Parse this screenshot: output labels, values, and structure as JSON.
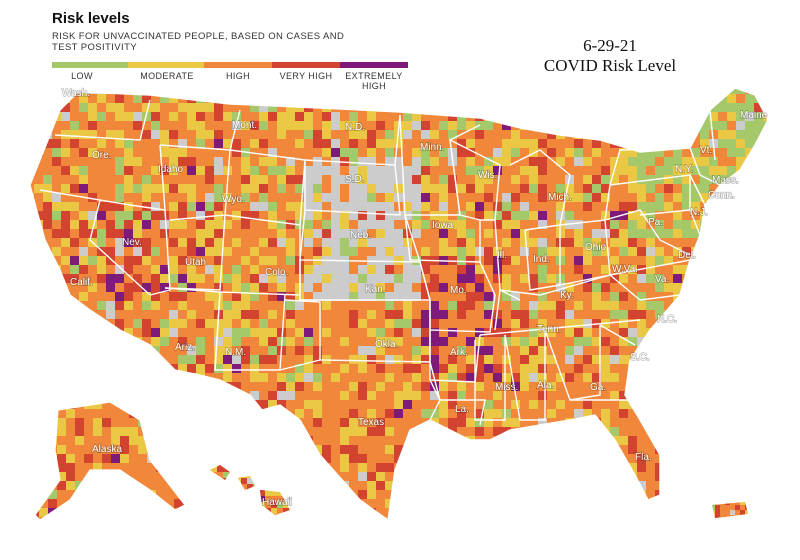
{
  "legend": {
    "title": "Risk levels",
    "subtitle": "RISK FOR UNVACCINATED PEOPLE, BASED ON CASES AND TEST POSITIVITY",
    "levels": [
      {
        "label": "LOW",
        "color": "#a5c96a"
      },
      {
        "label": "MODERATE",
        "color": "#ebc844"
      },
      {
        "label": "HIGH",
        "color": "#f0873a"
      },
      {
        "label": "VERY HIGH",
        "color": "#d24330"
      },
      {
        "label": "EXTREMELY HIGH",
        "color": "#7d1a7a"
      }
    ],
    "no_data_color": "#cccccc"
  },
  "map_title": {
    "date": "6-29-21",
    "caption": "COVID Risk Level"
  },
  "state_labels": [
    "Wash.",
    "Ore.",
    "Calif.",
    "Nev.",
    "Idaho",
    "Mont.",
    "Wyo.",
    "Utah",
    "Ariz.",
    "Colo.",
    "N.M.",
    "N.D.",
    "S.D.",
    "Neb.",
    "Kan.",
    "Okla.",
    "Texas",
    "Minn.",
    "Iowa",
    "Mo.",
    "Ark.",
    "La.",
    "Wis.",
    "Ill.",
    "Mich.",
    "Ind.",
    "Ohio",
    "Ky.",
    "Tenn.",
    "Miss.",
    "Ala.",
    "Ga.",
    "Fla.",
    "S.C.",
    "N.C.",
    "Va.",
    "W.Va.",
    "Pa.",
    "N.Y.",
    "Vt.",
    "Maine",
    "Mass.",
    "Conn.",
    "N.J.",
    "Del.",
    "Alaska",
    "Hawaii"
  ]
}
